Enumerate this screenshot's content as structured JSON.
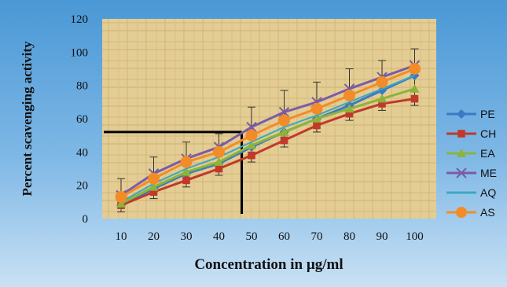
{
  "chart_data": {
    "type": "line",
    "title": "",
    "xlabel": "Concentration in µg/ml",
    "ylabel": "Percent scavenging activity",
    "categories": [
      "10",
      "20",
      "30",
      "40",
      "50",
      "60",
      "70",
      "80",
      "90",
      "100"
    ],
    "ylim": [
      0,
      120
    ],
    "yticks": [
      "0",
      "20",
      "40",
      "60",
      "80",
      "100",
      "120"
    ],
    "grid": false,
    "legend_position": "right",
    "series": [
      {
        "name": "PE",
        "color": "#3b79c4",
        "marker": "diamond",
        "values": [
          8,
          18,
          27,
          33,
          43,
          52,
          60,
          68,
          77,
          86
        ]
      },
      {
        "name": "CH",
        "color": "#c0392b",
        "marker": "square",
        "values": [
          8,
          16,
          23,
          30,
          38,
          47,
          56,
          63,
          69,
          72
        ]
      },
      {
        "name": "EA",
        "color": "#8db33a",
        "marker": "triangle",
        "values": [
          9,
          19,
          28,
          34,
          44,
          52,
          60,
          66,
          72,
          78
        ]
      },
      {
        "name": "ME",
        "color": "#7b5ba6",
        "marker": "x",
        "values": [
          14,
          27,
          36,
          43,
          55,
          64,
          70,
          78,
          85,
          92
        ]
      },
      {
        "name": "AQ",
        "color": "#3aa8c0",
        "marker": "none",
        "values": [
          10,
          21,
          30,
          37,
          46,
          55,
          62,
          70,
          78,
          86
        ]
      },
      {
        "name": "AS",
        "color": "#f28c28",
        "marker": "circle",
        "values": [
          13,
          24,
          34,
          40,
          50,
          59,
          66,
          74,
          82,
          90
        ]
      }
    ],
    "error_bars": [
      10,
      10,
      10,
      8,
      12,
      13,
      12,
      12,
      10,
      10
    ],
    "annotation": {
      "x_value": 47,
      "y_value": 52
    }
  }
}
